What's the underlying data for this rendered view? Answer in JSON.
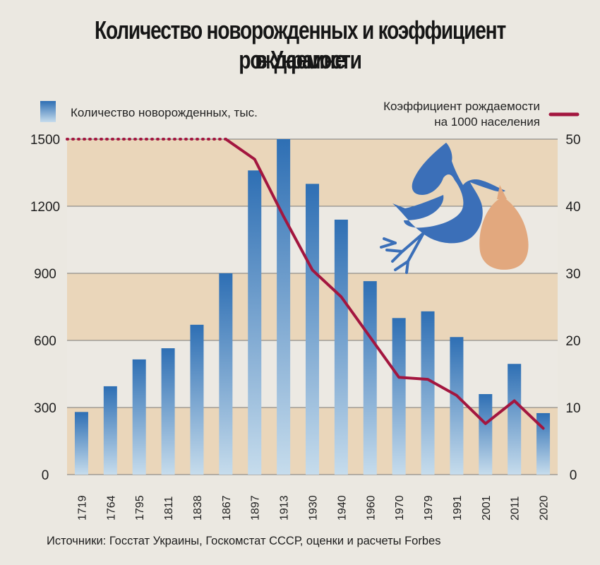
{
  "title_line1": "Количество новорожденных и коэффициент рождаемости",
  "title_line2": "в Украине",
  "legend": {
    "bars": "Количество новорожденных, тыс.",
    "line_line1": "Коэффициент рождаемости",
    "line_line2": "на 1000 населения"
  },
  "source": "Источники: Госстат Украины, Госкомстат СССР, оценки и расчеты Forbes",
  "colors": {
    "bar_top": "#2e6fb4",
    "bar_bottom": "#c6dcec",
    "line": "#a3163f",
    "band_tan": "#ead6ba",
    "band_light": "#ece9e3",
    "stork": "#3b6fb8",
    "bag": "#e2a87e"
  },
  "icons": [
    "stork-icon",
    "baby-bag-icon"
  ],
  "chart_data": {
    "type": "bar+line",
    "categories": [
      "1719",
      "1764",
      "1795",
      "1811",
      "1838",
      "1867",
      "1897",
      "1913",
      "1930",
      "1940",
      "1960",
      "1970",
      "1979",
      "1991",
      "2001",
      "2011",
      "2020"
    ],
    "series": [
      {
        "name": "Количество новорожденных, тыс.",
        "type": "bar",
        "axis": "left",
        "values": [
          280,
          395,
          515,
          565,
          670,
          900,
          1360,
          1500,
          1300,
          1140,
          865,
          700,
          730,
          615,
          360,
          495,
          275
        ]
      },
      {
        "name": "Коэффициент рождаемости на 1000 населения",
        "type": "line",
        "axis": "right",
        "values": [
          50,
          50,
          50,
          50,
          50,
          50,
          47,
          38.5,
          30.5,
          26.5,
          20.5,
          14.5,
          14.2,
          11.8,
          7.6,
          11,
          6.9
        ],
        "dotted_through": "1867"
      }
    ],
    "y_left": {
      "ticks": [
        "0",
        "300",
        "600",
        "900",
        "1200",
        "1500"
      ],
      "range": [
        0,
        1500
      ]
    },
    "y_right": {
      "ticks": [
        "0",
        "10",
        "20",
        "30",
        "40",
        "50"
      ],
      "range": [
        0,
        50
      ]
    },
    "grid": true,
    "legend_placement": "top"
  }
}
